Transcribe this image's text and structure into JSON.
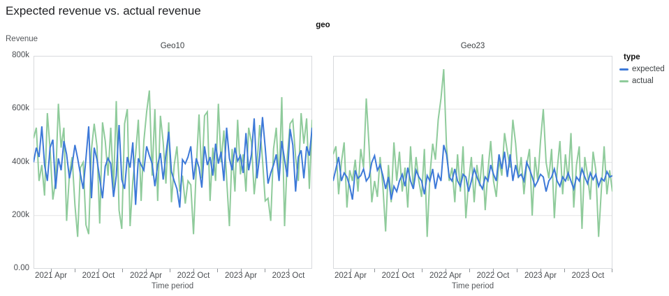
{
  "title": "Expected revenue vs. actual revenue",
  "facet_field_label": "geo",
  "y_axis": {
    "title": "Revenue",
    "tick_labels": [
      "800k",
      "600k",
      "400k",
      "200k",
      "0.00"
    ]
  },
  "x_axis": {
    "title": "Time period",
    "major_tick_labels": [
      "2021 Apr",
      "2021 Oct",
      "2022 Apr",
      "2022 Oct",
      "2023 Apr",
      "2023 Oct"
    ]
  },
  "legend": {
    "title": "type",
    "items": [
      {
        "label": "expected",
        "color": "#3d79d8"
      },
      {
        "label": "actual",
        "color": "#8fcb9b"
      }
    ]
  },
  "chart_data": {
    "type": "line",
    "title": "Expected revenue vs. actual revenue",
    "facet_field": "geo",
    "xlabel": "Time period",
    "ylabel": "Revenue",
    "x_domain": [
      "2021 Jan",
      "2024 Jan"
    ],
    "y_domain": [
      0,
      800000
    ],
    "y_tick_values": [
      0,
      200000,
      400000,
      600000,
      800000
    ],
    "grid": "horizontal",
    "legend_position": "top-right",
    "values_unit": "thousands (k)",
    "sampling": "approx. weekly points, Jan 2021 - Dec 2023, estimated from plot",
    "facets": [
      {
        "name": "Geo10",
        "series": [
          {
            "name": "expected",
            "color": "#3d79d8",
            "values": [
              400,
              455,
              420,
              535,
              390,
              330,
              455,
              485,
              300,
              415,
              370,
              480,
              430,
              340,
              390,
              465,
              415,
              355,
              300,
              415,
              535,
              265,
              455,
              410,
              340,
              265,
              385,
              415,
              395,
              270,
              350,
              540,
              335,
              300,
              420,
              380,
              475,
              240,
              415,
              390,
              370,
              460,
              425,
              395,
              310,
              390,
              435,
              335,
              430,
              515,
              365,
              330,
              300,
              230,
              410,
              395,
              420,
              460,
              335,
              415,
              380,
              305,
              460,
              390,
              420,
              350,
              470,
              395,
              440,
              330,
              530,
              415,
              370,
              455,
              405,
              425,
              360,
              510,
              370,
              430,
              565,
              340,
              425,
              570,
              455,
              320,
              360,
              390,
              430,
              330,
              480,
              410,
              345,
              525,
              465,
              290,
              420,
              445,
              340,
              460,
              425,
              530
            ]
          },
          {
            "name": "actual",
            "color": "#8fcb9b",
            "values": [
              490,
              530,
              330,
              390,
              275,
              585,
              450,
              260,
              330,
              620,
              455,
              530,
              180,
              355,
              420,
              240,
              120,
              380,
              400,
              165,
              130,
              450,
              545,
              460,
              170,
              550,
              480,
              350,
              530,
              300,
              630,
              220,
              150,
              545,
              600,
              160,
              330,
              430,
              560,
              255,
              480,
              590,
              670,
              350,
              600,
              255,
              575,
              475,
              320,
              550,
              250,
              390,
              460,
              290,
              350,
              245,
              330,
              315,
              130,
              380,
              580,
              340,
              575,
              590,
              255,
              455,
              330,
              620,
              400,
              520,
              340,
              160,
              450,
              290,
              560,
              355,
              430,
              290,
              530,
              475,
              280,
              390,
              540,
              410,
              255,
              265,
              180,
              450,
              530,
              330,
              645,
              160,
              420,
              545,
              560,
              420,
              330,
              585,
              470,
              565,
              300,
              560
            ]
          }
        ]
      },
      {
        "name": "Geo23",
        "series": [
          {
            "name": "expected",
            "color": "#3d79d8",
            "values": [
              330,
              375,
              420,
              330,
              360,
              345,
              310,
              260,
              370,
              340,
              350,
              375,
              330,
              345,
              400,
              425,
              370,
              390,
              350,
              300,
              345,
              260,
              310,
              290,
              330,
              355,
              310,
              380,
              330,
              300,
              370,
              345,
              330,
              280,
              350,
              330,
              375,
              300,
              355,
              330,
              465,
              430,
              345,
              330,
              375,
              330,
              310,
              355,
              345,
              290,
              330,
              375,
              345,
              320,
              300,
              345,
              330,
              390,
              355,
              330,
              430,
              375,
              440,
              345,
              430,
              330,
              390,
              345,
              355,
              330,
              400,
              375,
              345,
              310,
              330,
              355,
              345,
              290,
              330,
              345,
              375,
              330,
              310,
              345,
              330,
              360,
              330,
              300,
              345,
              330,
              375,
              345,
              320,
              360,
              335,
              355,
              310,
              340,
              330,
              365,
              345,
              350
            ]
          },
          {
            "name": "actual",
            "color": "#8fcb9b",
            "values": [
              430,
              460,
              280,
              400,
              475,
              230,
              370,
              330,
              410,
              290,
              450,
              380,
              640,
              460,
              250,
              330,
              270,
              420,
              310,
              140,
              390,
              250,
              475,
              330,
              440,
              290,
              380,
              230,
              460,
              300,
              420,
              330,
              270,
              450,
              120,
              350,
              470,
              410,
              560,
              640,
              750,
              460,
              330,
              380,
              250,
              430,
              290,
              460,
              190,
              330,
              420,
              250,
              390,
              310,
              430,
              220,
              370,
              480,
              330,
              270,
              410,
              350,
              510,
              440,
              380,
              560,
              470,
              340,
              420,
              280,
              390,
              450,
              200,
              420,
              330,
              480,
              600,
              400,
              340,
              450,
              190,
              370,
              480,
              280,
              430,
              330,
              510,
              230,
              390,
              460,
              150,
              420,
              350,
              260,
              440,
              370,
              120,
              300,
              460,
              280,
              370,
              290
            ]
          }
        ]
      }
    ]
  }
}
